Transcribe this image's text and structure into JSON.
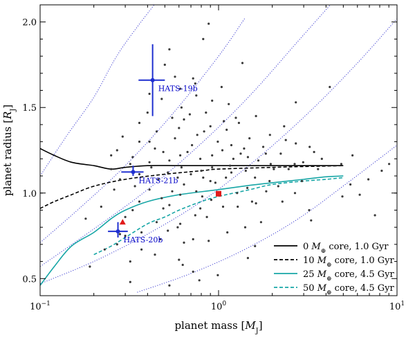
{
  "chart_data": {
    "type": "scatter",
    "xlabel": "planet mass [M_J]",
    "ylabel": "planet radius [R_J]",
    "xscale": "log",
    "xlim": [
      0.1,
      10
    ],
    "ylim": [
      0.4,
      2.1
    ],
    "x_ticks": [
      {
        "value": 0.1,
        "base": "10",
        "exp": "−1"
      },
      {
        "value": 1,
        "base": "10",
        "exp": "0"
      },
      {
        "value": 10,
        "base": "10",
        "exp": "1"
      }
    ],
    "y_ticks": [
      {
        "value": 0.5,
        "label": "0.5"
      },
      {
        "value": 1.0,
        "label": "1.0"
      },
      {
        "value": 1.5,
        "label": "1.5"
      },
      {
        "value": 2.0,
        "label": "2.0"
      }
    ],
    "grid": false,
    "legend_position": "bottom-right",
    "legend": [
      {
        "pre": "0 ",
        "mid": "M",
        "post": " core, 1.0 Gyr",
        "color": "#000000",
        "dash": "solid"
      },
      {
        "pre": "10 ",
        "mid": "M",
        "post": " core, 1.0 Gyr",
        "color": "#000000",
        "dash": "dashed"
      },
      {
        "pre": "25 ",
        "mid": "M",
        "post": " core, 4.5 Gyr",
        "color": "#17a6a6",
        "dash": "solid"
      },
      {
        "pre": "50 ",
        "mid": "M",
        "post": " core, 4.5 Gyr",
        "color": "#17a6a6",
        "dash": "dashed"
      }
    ],
    "model_curves": [
      {
        "color": "#000000",
        "dash": "solid",
        "points": [
          [
            0.1,
            1.26
          ],
          [
            0.12,
            1.22
          ],
          [
            0.15,
            1.18
          ],
          [
            0.2,
            1.16
          ],
          [
            0.25,
            1.14
          ],
          [
            0.3,
            1.15
          ],
          [
            0.4,
            1.16
          ],
          [
            0.6,
            1.16
          ],
          [
            1.0,
            1.16
          ],
          [
            2.0,
            1.16
          ],
          [
            3.0,
            1.16
          ],
          [
            5.0,
            1.16
          ]
        ]
      },
      {
        "color": "#000000",
        "dash": "dashed",
        "points": [
          [
            0.1,
            0.91
          ],
          [
            0.12,
            0.95
          ],
          [
            0.15,
            0.99
          ],
          [
            0.2,
            1.04
          ],
          [
            0.3,
            1.08
          ],
          [
            0.5,
            1.11
          ],
          [
            0.8,
            1.13
          ],
          [
            1.0,
            1.14
          ],
          [
            2.0,
            1.15
          ],
          [
            3.0,
            1.155
          ],
          [
            5.0,
            1.16
          ]
        ]
      },
      {
        "color": "#17a6a6",
        "dash": "solid",
        "points": [
          [
            0.1,
            0.46
          ],
          [
            0.12,
            0.57
          ],
          [
            0.15,
            0.69
          ],
          [
            0.2,
            0.77
          ],
          [
            0.25,
            0.85
          ],
          [
            0.3,
            0.9
          ],
          [
            0.4,
            0.95
          ],
          [
            0.6,
            0.99
          ],
          [
            1.0,
            1.02
          ],
          [
            1.5,
            1.045
          ],
          [
            2.0,
            1.06
          ],
          [
            3.0,
            1.08
          ],
          [
            4.0,
            1.095
          ],
          [
            5.0,
            1.1
          ]
        ]
      },
      {
        "color": "#17a6a6",
        "dash": "dashed",
        "points": [
          [
            0.2,
            0.64
          ],
          [
            0.25,
            0.69
          ],
          [
            0.3,
            0.74
          ],
          [
            0.4,
            0.82
          ],
          [
            0.5,
            0.86
          ],
          [
            0.6,
            0.9
          ],
          [
            0.8,
            0.95
          ],
          [
            1.0,
            0.98
          ],
          [
            1.5,
            1.02
          ],
          [
            2.0,
            1.05
          ],
          [
            3.0,
            1.07
          ],
          [
            4.0,
            1.08
          ],
          [
            5.0,
            1.09
          ]
        ]
      }
    ],
    "density_curves": [
      {
        "points": [
          [
            0.1,
            1.1
          ],
          [
            0.14,
            1.33
          ],
          [
            0.2,
            1.56
          ],
          [
            0.28,
            1.83
          ],
          [
            0.45,
            2.12
          ]
        ]
      },
      {
        "points": [
          [
            0.1,
            0.71
          ],
          [
            0.17,
            0.92
          ],
          [
            0.3,
            1.16
          ],
          [
            0.55,
            1.46
          ],
          [
            1.0,
            1.8
          ],
          [
            1.4,
            2.02
          ]
        ]
      },
      {
        "points": [
          [
            0.1,
            0.57
          ],
          [
            0.2,
            0.79
          ],
          [
            0.4,
            1.02
          ],
          [
            0.8,
            1.29
          ],
          [
            1.5,
            1.57
          ],
          [
            2.8,
            1.89
          ],
          [
            4.4,
            2.12
          ]
        ]
      },
      {
        "points": [
          [
            0.1,
            0.47
          ],
          [
            0.2,
            0.6
          ],
          [
            0.4,
            0.76
          ],
          [
            0.8,
            0.95
          ],
          [
            1.6,
            1.19
          ],
          [
            3.2,
            1.47
          ],
          [
            6.0,
            1.76
          ],
          [
            10,
            2.02
          ]
        ]
      },
      {
        "points": [
          [
            0.35,
            0.42
          ],
          [
            0.7,
            0.53
          ],
          [
            1.4,
            0.67
          ],
          [
            2.8,
            0.85
          ],
          [
            5.6,
            1.08
          ],
          [
            10,
            1.28
          ]
        ]
      }
    ],
    "highlighted_planets": [
      {
        "name": "HATS-19b",
        "x": 0.427,
        "y": 1.66,
        "xerr": [
          0.356,
          0.5
        ],
        "yerr": [
          1.45,
          1.87
        ]
      },
      {
        "name": "HATS-21b",
        "x": 0.332,
        "y": 1.123,
        "xerr": [
          0.285,
          0.38
        ],
        "yerr": [
          1.1,
          1.16
        ]
      },
      {
        "name": "HATS-20b",
        "x": 0.273,
        "y": 0.776,
        "xerr": [
          0.24,
          0.31
        ],
        "yerr": [
          0.74,
          0.83
        ]
      }
    ],
    "special_markers": [
      {
        "shape": "square",
        "x": 1.0,
        "y": 0.996,
        "color": "#e11b1b"
      },
      {
        "shape": "triangle",
        "x": 0.29,
        "y": 0.83,
        "color": "#e11b1b"
      }
    ],
    "known_planets": [
      [
        0.53,
        0.46
      ],
      [
        0.32,
        0.48
      ],
      [
        0.78,
        0.49
      ],
      [
        0.99,
        0.52
      ],
      [
        0.72,
        0.54
      ],
      [
        0.19,
        0.57
      ],
      [
        0.63,
        0.58
      ],
      [
        0.32,
        0.6
      ],
      [
        0.6,
        0.61
      ],
      [
        1.46,
        0.62
      ],
      [
        0.44,
        0.64
      ],
      [
        0.37,
        0.67
      ],
      [
        1.6,
        0.69
      ],
      [
        0.64,
        0.71
      ],
      [
        0.88,
        0.72
      ],
      [
        0.27,
        0.7
      ],
      [
        0.47,
        0.73
      ],
      [
        0.72,
        0.73
      ],
      [
        0.3,
        0.75
      ],
      [
        0.28,
        0.76
      ],
      [
        0.37,
        0.77
      ],
      [
        0.52,
        0.78
      ],
      [
        1.12,
        0.77
      ],
      [
        0.59,
        0.8
      ],
      [
        1.41,
        0.8
      ],
      [
        0.61,
        0.82
      ],
      [
        0.45,
        0.83
      ],
      [
        3.3,
        0.84
      ],
      [
        0.18,
        0.85
      ],
      [
        0.3,
        0.86
      ],
      [
        0.86,
        0.86
      ],
      [
        0.74,
        0.87
      ],
      [
        3.22,
        0.9
      ],
      [
        0.49,
        0.91
      ],
      [
        0.79,
        0.91
      ],
      [
        1.06,
        0.92
      ],
      [
        1.28,
        0.92
      ],
      [
        1.62,
        0.94
      ],
      [
        2.28,
        0.95
      ],
      [
        0.48,
        0.97
      ],
      [
        0.91,
        0.96
      ],
      [
        0.81,
        0.98
      ],
      [
        0.61,
        0.99
      ],
      [
        1.27,
        1.0
      ],
      [
        0.41,
        1.02
      ],
      [
        1.85,
        1.01
      ],
      [
        2.68,
        1.0
      ],
      [
        1.45,
        1.03
      ],
      [
        0.64,
        1.05
      ],
      [
        0.96,
        1.06
      ],
      [
        1.93,
        1.07
      ],
      [
        0.28,
        1.08
      ],
      [
        0.82,
        1.09
      ],
      [
        1.6,
        1.09
      ],
      [
        0.36,
        1.11
      ],
      [
        0.52,
        1.12
      ],
      [
        1.18,
        1.12
      ],
      [
        0.8,
        1.13
      ],
      [
        2.04,
        1.14
      ],
      [
        0.42,
        1.15
      ],
      [
        0.62,
        1.15
      ],
      [
        1.16,
        1.16
      ],
      [
        1.96,
        1.17
      ],
      [
        0.41,
        1.18
      ],
      [
        1.21,
        1.2
      ],
      [
        3.79,
        1.2
      ],
      [
        0.33,
        1.21
      ],
      [
        1.46,
        1.21
      ],
      [
        0.61,
        1.22
      ],
      [
        0.92,
        1.22
      ],
      [
        2.23,
        1.23
      ],
      [
        0.27,
        1.25
      ],
      [
        0.44,
        1.26
      ],
      [
        1.39,
        1.26
      ],
      [
        0.71,
        1.28
      ],
      [
        1.18,
        1.28
      ],
      [
        2.71,
        1.29
      ],
      [
        0.41,
        1.3
      ],
      [
        0.99,
        1.3
      ],
      [
        0.57,
        1.32
      ],
      [
        1.49,
        1.32
      ],
      [
        0.29,
        1.33
      ],
      [
        0.76,
        1.34
      ],
      [
        1.94,
        1.34
      ],
      [
        0.45,
        1.36
      ],
      [
        1.11,
        1.37
      ],
      [
        0.6,
        1.38
      ],
      [
        0.9,
        1.39
      ],
      [
        2.33,
        1.39
      ],
      [
        0.36,
        1.41
      ],
      [
        1.3,
        1.41
      ],
      [
        0.64,
        1.43
      ],
      [
        0.55,
        1.44
      ],
      [
        1.62,
        1.45
      ],
      [
        0.4,
        1.47
      ],
      [
        0.85,
        1.47
      ],
      [
        0.62,
        1.5
      ],
      [
        1.14,
        1.52
      ],
      [
        2.71,
        1.53
      ],
      [
        0.48,
        1.55
      ],
      [
        0.75,
        1.57
      ],
      [
        0.61,
        1.61
      ],
      [
        1.04,
        1.62
      ],
      [
        4.2,
        1.62
      ],
      [
        0.72,
        1.67
      ],
      [
        0.5,
        1.75
      ],
      [
        1.36,
        1.76
      ],
      [
        0.53,
        1.84
      ],
      [
        0.82,
        1.9
      ],
      [
        0.88,
        1.99
      ],
      [
        4.94,
        0.98
      ],
      [
        6.18,
        0.99
      ],
      [
        5.48,
        1.05
      ],
      [
        6.91,
        1.08
      ],
      [
        8.21,
        1.13
      ],
      [
        3.61,
        1.14
      ],
      [
        4.87,
        1.17
      ],
      [
        9.03,
        1.17
      ],
      [
        3.24,
        1.27
      ],
      [
        2.47,
        1.14
      ],
      [
        2.93,
        1.07
      ],
      [
        3.43,
        1.24
      ],
      [
        5.63,
        1.22
      ],
      [
        7.52,
        0.87
      ],
      [
        1.73,
        0.83
      ],
      [
        2.98,
        1.18
      ],
      [
        2.16,
        1.04
      ],
      [
        1.54,
        0.95
      ],
      [
        0.25,
        1.22
      ],
      [
        0.34,
        1.04
      ],
      [
        0.22,
        0.92
      ],
      [
        0.36,
        0.95
      ],
      [
        0.23,
        0.67
      ],
      [
        0.53,
        0.93
      ],
      [
        0.67,
        1.24
      ],
      [
        0.59,
        1.09
      ],
      [
        0.41,
        1.58
      ],
      [
        0.25,
        1.14
      ],
      [
        0.83,
        1.36
      ],
      [
        1.25,
        1.44
      ],
      [
        1.78,
        1.27
      ],
      [
        0.9,
        1.07
      ],
      [
        0.36,
        1.3
      ],
      [
        0.57,
        1.68
      ],
      [
        0.49,
        1.24
      ],
      [
        0.32,
        1.17
      ],
      [
        1.05,
        1.25
      ],
      [
        0.69,
        1.46
      ],
      [
        1.67,
        1.19
      ],
      [
        2.38,
        1.31
      ],
      [
        0.92,
        1.15
      ],
      [
        0.26,
        1.02
      ],
      [
        0.46,
        1.08
      ],
      [
        0.7,
        1.11
      ],
      [
        1.1,
        1.09
      ],
      [
        1.42,
        1.13
      ],
      [
        0.53,
        1.19
      ],
      [
        0.79,
        1.2
      ],
      [
        1.33,
        1.23
      ],
      [
        0.33,
        0.9
      ],
      [
        0.75,
        1.01
      ],
      [
        0.55,
        1.01
      ],
      [
        1.07,
        1.42
      ],
      [
        0.74,
        1.64
      ],
      [
        0.92,
        1.54
      ],
      [
        2.67,
        1.17
      ],
      [
        1.84,
        1.23
      ]
    ]
  }
}
